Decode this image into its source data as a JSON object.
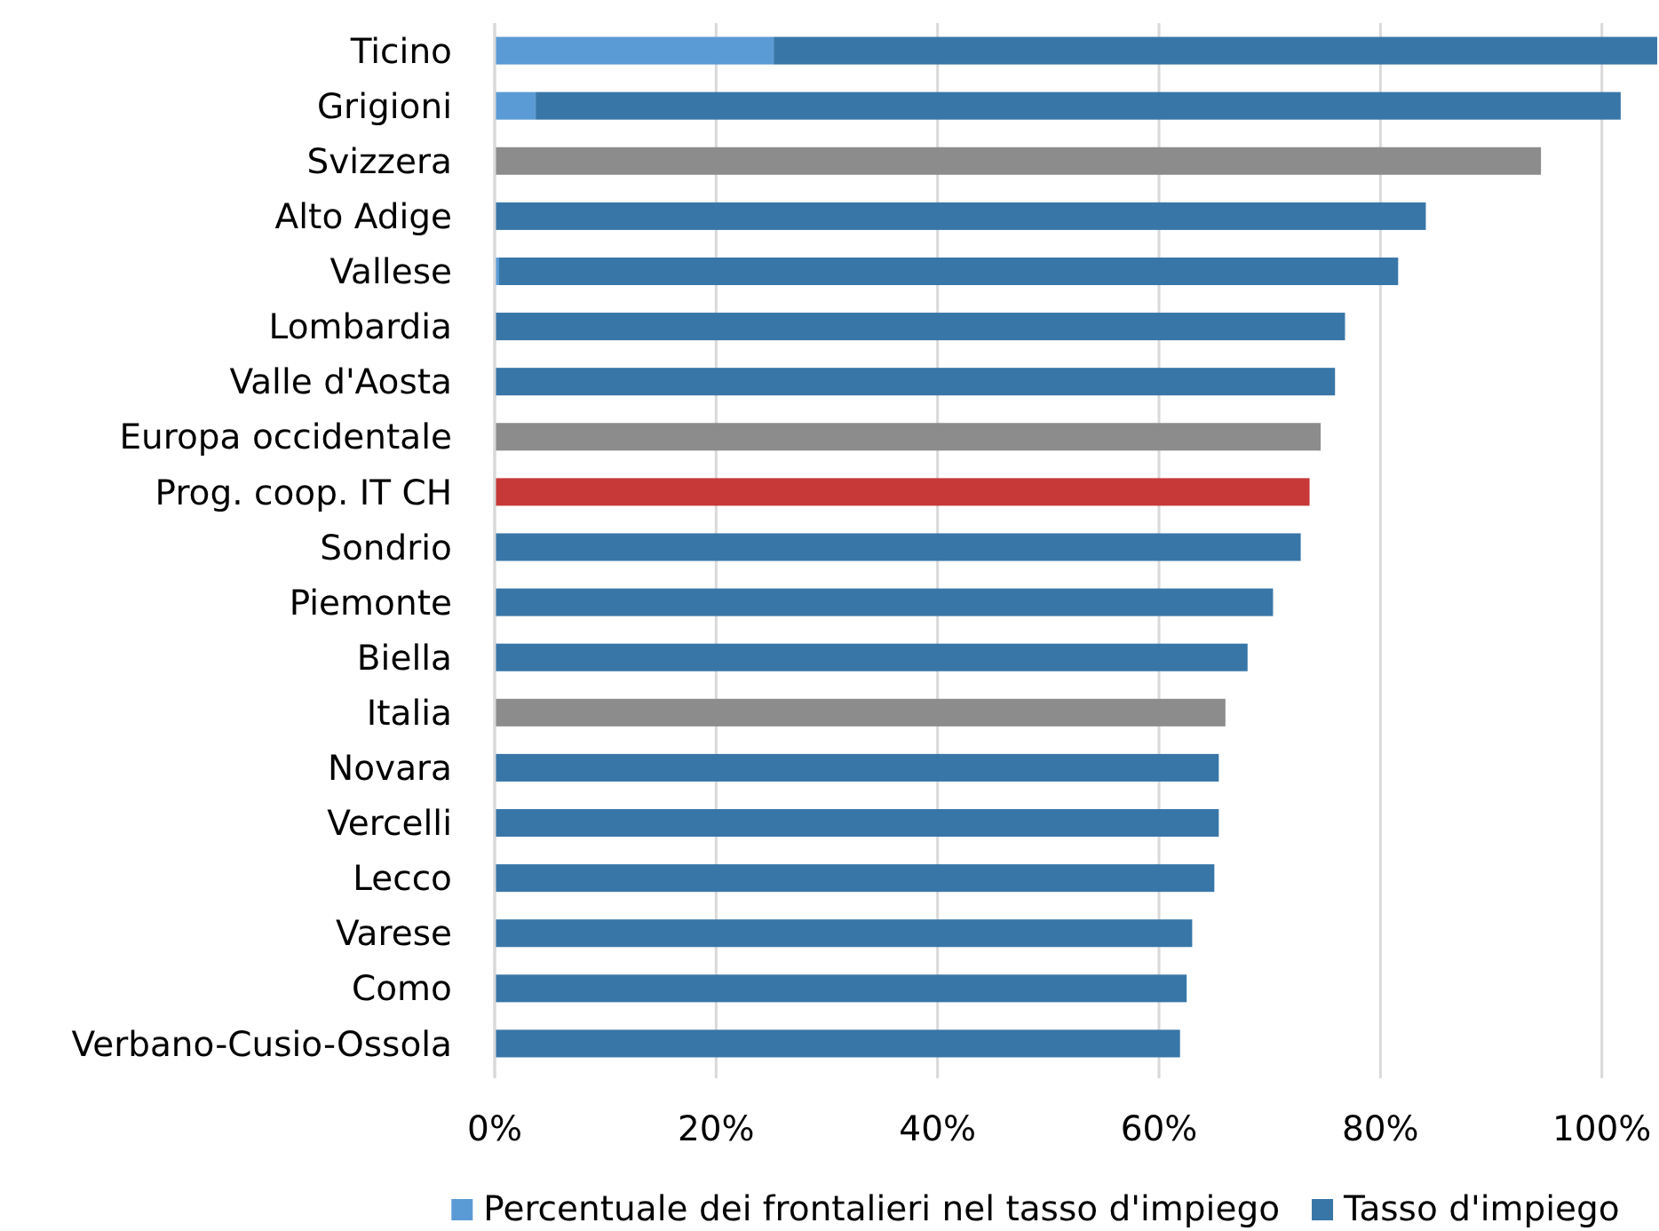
{
  "chart_data": {
    "type": "bar",
    "orientation": "horizontal",
    "stacked": true,
    "categories": [
      "Ticino",
      "Grigioni",
      "Svizzera",
      "Alto Adige",
      "Vallese",
      "Lombardia",
      "Valle d'Aosta",
      "Europa occidentale",
      "Prog. coop. IT CH",
      "Sondrio",
      "Piemonte",
      "Biella",
      "Italia",
      "Novara",
      "Vercelli",
      "Lecco",
      "Varese",
      "Como",
      "Verbano-Cusio-Ossola"
    ],
    "series": [
      {
        "name": "Percentuale dei frontalieri nel tasso d'impiego",
        "color": "#5b9bd5",
        "values": [
          25.2,
          3.7,
          null,
          null,
          0.4,
          null,
          null,
          null,
          null,
          null,
          null,
          null,
          null,
          null,
          null,
          null,
          null,
          null,
          null
        ]
      },
      {
        "name": "Tasso d'impiego",
        "color": "#3876a8",
        "colors": [
          "#3876a8",
          "#3876a8",
          "#8c8c8c",
          "#3876a8",
          "#3876a8",
          "#3876a8",
          "#3876a8",
          "#8c8c8c",
          "#c73838",
          "#3876a8",
          "#3876a8",
          "#3876a8",
          "#8c8c8c",
          "#3876a8",
          "#3876a8",
          "#3876a8",
          "#3876a8",
          "#3876a8",
          "#3876a8"
        ],
        "values": [
          79.8,
          98.0,
          94.5,
          84.1,
          81.2,
          76.8,
          75.9,
          74.6,
          73.6,
          72.8,
          70.3,
          68.0,
          66.0,
          65.4,
          65.4,
          65.0,
          63.0,
          62.5,
          61.9
        ]
      }
    ],
    "xlim": [
      0,
      105
    ],
    "xticks": [
      {
        "value": 0,
        "label": "0%"
      },
      {
        "value": 20,
        "label": "20%"
      },
      {
        "value": 40,
        "label": "40%"
      },
      {
        "value": 60,
        "label": "60%"
      },
      {
        "value": 80,
        "label": "80%"
      },
      {
        "value": 100,
        "label": "100%"
      }
    ],
    "grid": "x",
    "legend": "bottom"
  }
}
